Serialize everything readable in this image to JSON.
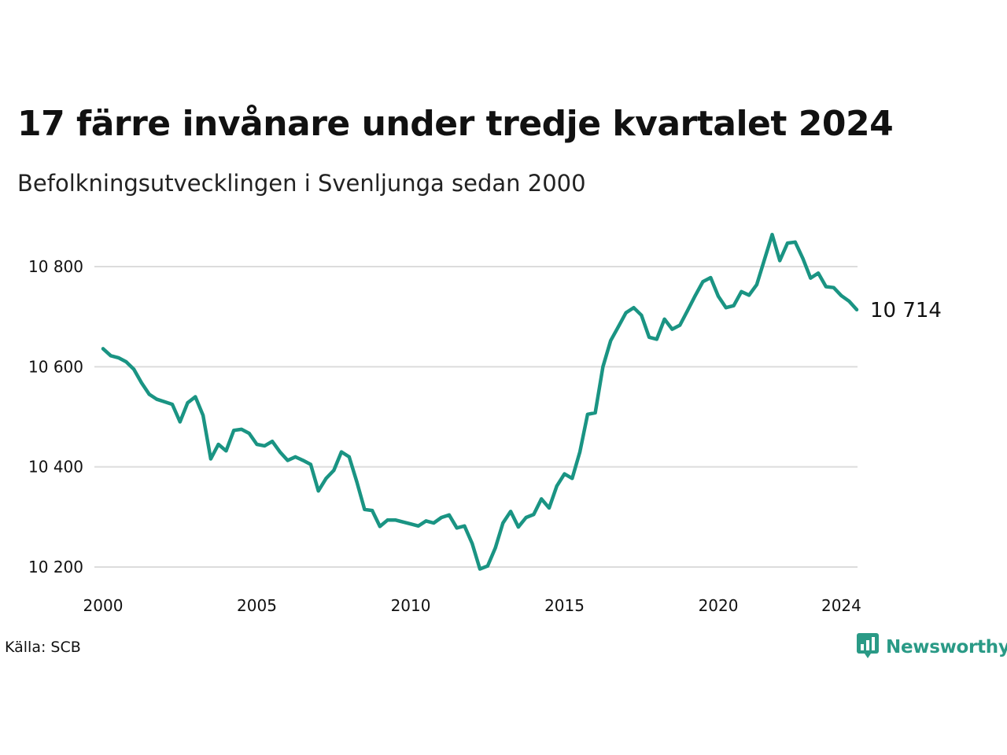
{
  "title": "17 färre invånare under tredje kvartalet 2024",
  "subtitle": "Befolkningsutvecklingen i Svenljunga sedan 2000",
  "source": "Källa: SCB",
  "brand": {
    "name": "Newsworthy",
    "icon": "newsworthy-logo-icon",
    "color": "#2a9a86"
  },
  "chart_data": {
    "type": "line",
    "title": "17 färre invånare under tredje kvartalet 2024",
    "subtitle": "Befolkningsutvecklingen i Svenljunga sedan 2000",
    "xlabel": "",
    "ylabel": "",
    "x_ticks": [
      2000,
      2005,
      2010,
      2015,
      2020,
      2024
    ],
    "y_ticks": [
      10200,
      10400,
      10600,
      10800
    ],
    "y_tick_labels": [
      "10 200",
      "10 400",
      "10 600",
      "10 800"
    ],
    "xlim": [
      2000,
      2024.5
    ],
    "ylim": [
      10190,
      10880
    ],
    "grid": "horizontal",
    "line_color": "#1a9483",
    "end_label": "10 714",
    "series": [
      {
        "values": [
          [
            2000.0,
            10636
          ],
          [
            2000.25,
            10622
          ],
          [
            2000.5,
            10618
          ],
          [
            2000.75,
            10610
          ],
          [
            2001.0,
            10595
          ],
          [
            2001.25,
            10568
          ],
          [
            2001.5,
            10545
          ],
          [
            2001.75,
            10535
          ],
          [
            2002.0,
            10530
          ],
          [
            2002.25,
            10525
          ],
          [
            2002.5,
            10490
          ],
          [
            2002.75,
            10528
          ],
          [
            2003.0,
            10540
          ],
          [
            2003.25,
            10503
          ],
          [
            2003.5,
            10416
          ],
          [
            2003.75,
            10445
          ],
          [
            2004.0,
            10432
          ],
          [
            2004.25,
            10473
          ],
          [
            2004.5,
            10475
          ],
          [
            2004.75,
            10467
          ],
          [
            2005.0,
            10445
          ],
          [
            2005.25,
            10442
          ],
          [
            2005.5,
            10451
          ],
          [
            2005.75,
            10430
          ],
          [
            2006.0,
            10413
          ],
          [
            2006.25,
            10420
          ],
          [
            2006.5,
            10413
          ],
          [
            2006.75,
            10405
          ],
          [
            2007.0,
            10352
          ],
          [
            2007.25,
            10377
          ],
          [
            2007.5,
            10393
          ],
          [
            2007.75,
            10430
          ],
          [
            2008.0,
            10420
          ],
          [
            2008.25,
            10370
          ],
          [
            2008.5,
            10315
          ],
          [
            2008.75,
            10313
          ],
          [
            2009.0,
            10281
          ],
          [
            2009.25,
            10294
          ],
          [
            2009.5,
            10294
          ],
          [
            2009.75,
            10290
          ],
          [
            2010.0,
            10286
          ],
          [
            2010.25,
            10282
          ],
          [
            2010.5,
            10292
          ],
          [
            2010.75,
            10288
          ],
          [
            2011.0,
            10299
          ],
          [
            2011.25,
            10304
          ],
          [
            2011.5,
            10278
          ],
          [
            2011.75,
            10282
          ],
          [
            2012.0,
            10247
          ],
          [
            2012.25,
            10196
          ],
          [
            2012.5,
            10202
          ],
          [
            2012.75,
            10238
          ],
          [
            2013.0,
            10288
          ],
          [
            2013.25,
            10311
          ],
          [
            2013.5,
            10280
          ],
          [
            2013.75,
            10299
          ],
          [
            2014.0,
            10305
          ],
          [
            2014.25,
            10336
          ],
          [
            2014.5,
            10318
          ],
          [
            2014.75,
            10362
          ],
          [
            2015.0,
            10386
          ],
          [
            2015.25,
            10377
          ],
          [
            2015.5,
            10430
          ],
          [
            2015.75,
            10505
          ],
          [
            2016.0,
            10508
          ],
          [
            2016.25,
            10600
          ],
          [
            2016.5,
            10652
          ],
          [
            2016.75,
            10680
          ],
          [
            2017.0,
            10708
          ],
          [
            2017.25,
            10718
          ],
          [
            2017.5,
            10703
          ],
          [
            2017.75,
            10659
          ],
          [
            2018.0,
            10655
          ],
          [
            2018.25,
            10695
          ],
          [
            2018.5,
            10675
          ],
          [
            2018.75,
            10683
          ],
          [
            2019.0,
            10712
          ],
          [
            2019.25,
            10742
          ],
          [
            2019.5,
            10770
          ],
          [
            2019.75,
            10778
          ],
          [
            2020.0,
            10741
          ],
          [
            2020.25,
            10718
          ],
          [
            2020.5,
            10722
          ],
          [
            2020.75,
            10750
          ],
          [
            2021.0,
            10743
          ],
          [
            2021.25,
            10764
          ],
          [
            2021.5,
            10814
          ],
          [
            2021.75,
            10864
          ],
          [
            2022.0,
            10812
          ],
          [
            2022.25,
            10847
          ],
          [
            2022.5,
            10849
          ],
          [
            2022.75,
            10816
          ],
          [
            2023.0,
            10777
          ],
          [
            2023.25,
            10787
          ],
          [
            2023.5,
            10760
          ],
          [
            2023.75,
            10758
          ],
          [
            2024.0,
            10742
          ],
          [
            2024.25,
            10731
          ],
          [
            2024.5,
            10714
          ]
        ]
      }
    ]
  }
}
